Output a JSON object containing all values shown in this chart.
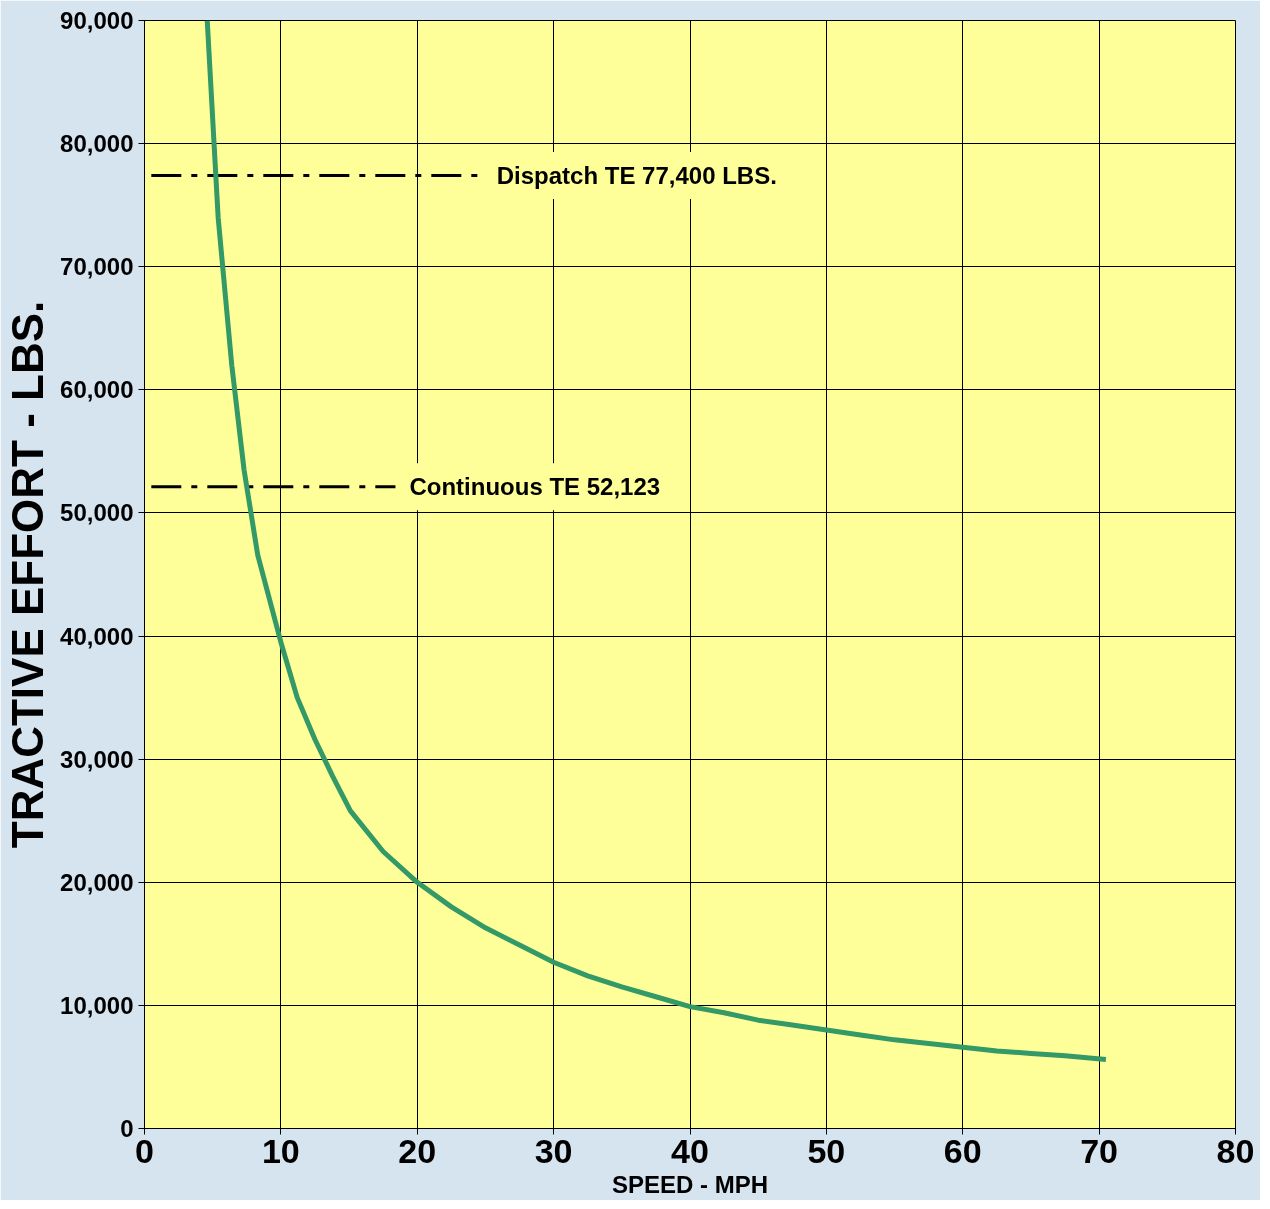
{
  "chart_data": {
    "type": "line",
    "xlabel": "SPEED - MPH",
    "ylabel": "TRACTIVE EFFORT - LBS.",
    "series": [
      {
        "color": "#339966",
        "x": [
          4.6,
          5.4,
          6.4,
          7.3,
          8.3,
          10,
          11.2,
          12.5,
          13.8,
          15.1,
          17.5,
          20,
          22.5,
          25,
          27.5,
          30,
          32.5,
          35,
          37.5,
          40,
          42.5,
          45,
          47.5,
          50,
          52.5,
          55,
          57.5,
          60,
          62.5,
          65,
          67.5,
          70.5
        ],
        "values": [
          90000,
          74000,
          62000,
          53500,
          46600,
          39500,
          35000,
          31600,
          28600,
          25800,
          22500,
          20000,
          18000,
          16300,
          14900,
          13500,
          12400,
          11500,
          10700,
          9900,
          9400,
          8800,
          8400,
          8000,
          7600,
          7200,
          6900,
          6600,
          6300,
          6100,
          5900,
          5600
        ]
      }
    ],
    "xlim": [
      0,
      80
    ],
    "xticks": [
      0,
      10,
      20,
      30,
      40,
      50,
      60,
      70,
      80
    ],
    "ylim": [
      0,
      90000
    ],
    "yticks": [
      {
        "value": 0,
        "label": "0"
      },
      {
        "value": 10000,
        "label": "10,000"
      },
      {
        "value": 20000,
        "label": "20,000"
      },
      {
        "value": 30000,
        "label": "30,000"
      },
      {
        "value": 40000,
        "label": "40,000"
      },
      {
        "value": 50000,
        "label": "50,000"
      },
      {
        "value": 60000,
        "label": "60,000"
      },
      {
        "value": 70000,
        "label": "70,000"
      },
      {
        "value": 80000,
        "label": "80,000"
      },
      {
        "value": 90000,
        "label": "90,000"
      }
    ],
    "grid": true,
    "line_style": "solid",
    "marker": "none",
    "ref_lines": [
      {
        "axis": "y",
        "value": 77400,
        "label": "Dispatch TE 77,400 LBS.",
        "color": "#000000",
        "line_style": "dashdot"
      },
      {
        "axis": "y",
        "value": 52123,
        "label": "Continuous TE 52,123",
        "color": "#000000",
        "line_style": "dashdot"
      }
    ]
  }
}
